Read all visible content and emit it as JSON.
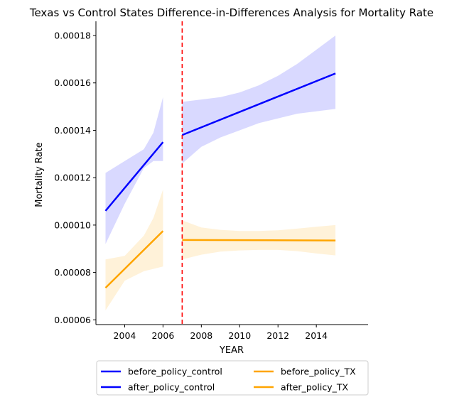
{
  "chart_data": {
    "type": "line",
    "title": "Texas vs Control States Difference-in-Differences Analysis for Mortality Rate",
    "xlabel": "YEAR",
    "ylabel": "Mortality Rate",
    "xlim": [
      2002.5,
      2016.7
    ],
    "ylim": [
      5.8e-05,
      0.000186
    ],
    "x_ticks": [
      2004,
      2006,
      2008,
      2010,
      2012,
      2014
    ],
    "y_ticks": [
      6e-05,
      8e-05,
      0.0001,
      0.00012,
      0.00014,
      0.00016,
      0.00018
    ],
    "y_tick_labels": [
      "0.00006",
      "0.00008",
      "0.00010",
      "0.00012",
      "0.00014",
      "0.00016",
      "0.00018"
    ],
    "policy_year": 2007,
    "policy_line_color": "#ff0000",
    "legend_position": "bottom-center",
    "legend_columns": 2,
    "series": [
      {
        "name": "before_policy_control",
        "color": "#0000ff",
        "band_color": "#0000ff",
        "x": [
          2003,
          2006
        ],
        "y": [
          0.000106,
          0.000135
        ],
        "band_x": [
          2003,
          2004,
          2005,
          2005.5,
          2006
        ],
        "band_upper": [
          0.000122,
          0.000127,
          0.000132,
          0.000139,
          0.000154
        ],
        "band_lower": [
          9.2e-05,
          0.000109,
          0.000124,
          0.000127,
          0.000127
        ]
      },
      {
        "name": "after_policy_control",
        "color": "#0000ff",
        "band_color": "#0000ff",
        "x": [
          2007,
          2015
        ],
        "y": [
          0.000138,
          0.000164
        ],
        "band_x": [
          2007,
          2008,
          2009,
          2010,
          2011,
          2012,
          2013,
          2014,
          2015
        ],
        "band_upper": [
          0.000152,
          0.000153,
          0.000154,
          0.000156,
          0.000159,
          0.000163,
          0.000168,
          0.000174,
          0.00018
        ],
        "band_lower": [
          0.000126,
          0.000133,
          0.000137,
          0.00014,
          0.000143,
          0.000145,
          0.000147,
          0.000148,
          0.000149
        ]
      },
      {
        "name": "before_policy_TX",
        "color": "#ffa500",
        "band_color": "#ffa500",
        "x": [
          2003,
          2006
        ],
        "y": [
          7.35e-05,
          9.75e-05
        ],
        "band_x": [
          2003,
          2004,
          2005,
          2005.5,
          2006
        ],
        "band_upper": [
          8.55e-05,
          8.7e-05,
          9.55e-05,
          0.000103,
          0.000115
        ],
        "band_lower": [
          6.4e-05,
          7.65e-05,
          8.05e-05,
          8.15e-05,
          8.25e-05
        ]
      },
      {
        "name": "after_policy_TX",
        "color": "#ffa500",
        "band_color": "#ffa500",
        "x": [
          2007,
          2015
        ],
        "y": [
          9.37e-05,
          9.35e-05
        ],
        "band_x": [
          2007,
          2008,
          2009,
          2010,
          2011,
          2012,
          2013,
          2014,
          2015
        ],
        "band_upper": [
          0.000102,
          9.9e-05,
          9.8e-05,
          9.75e-05,
          9.75e-05,
          9.78e-05,
          9.85e-05,
          9.93e-05,
          0.0001
        ],
        "band_lower": [
          8.55e-05,
          8.75e-05,
          8.88e-05,
          8.93e-05,
          8.95e-05,
          8.95e-05,
          8.9e-05,
          8.8e-05,
          8.72e-05
        ]
      }
    ]
  }
}
